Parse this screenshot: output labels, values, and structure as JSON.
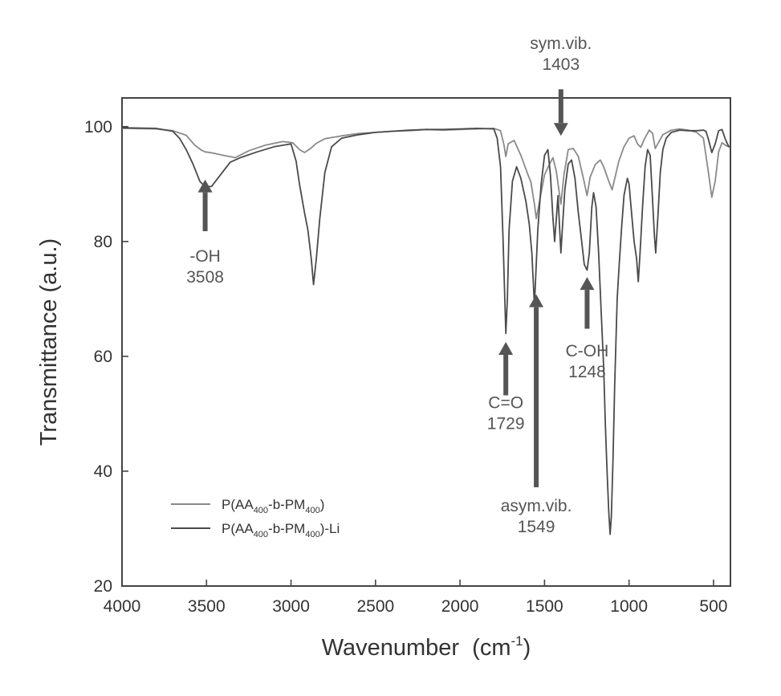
{
  "chart_data": {
    "type": "line",
    "xlabel": "Wavenumber",
    "xlabel_unit_base": "(cm",
    "xlabel_unit_exp": "-1",
    "xlabel_unit_close": ")",
    "ylabel": "Transmittance (a.u.)",
    "xlim": [
      4000,
      400
    ],
    "ylim": [
      20,
      105
    ],
    "x_ticks": [
      4000,
      3500,
      3000,
      2500,
      2000,
      1500,
      1000,
      500
    ],
    "y_ticks": [
      20,
      40,
      60,
      80,
      100
    ],
    "grid": false,
    "legend_position": "lower-left",
    "series": [
      {
        "name_main": "P(AA",
        "name_sub1": "400",
        "name_mid": "-b-PM",
        "name_sub2": "400",
        "name_end": ")",
        "color": "#8a8a8a",
        "points": [
          [
            4000,
            99.7
          ],
          [
            3800,
            99.6
          ],
          [
            3700,
            99.3
          ],
          [
            3620,
            98.5
          ],
          [
            3570,
            96.8
          ],
          [
            3530,
            95.9
          ],
          [
            3508,
            95.6
          ],
          [
            3460,
            95.4
          ],
          [
            3400,
            95.0
          ],
          [
            3330,
            94.6
          ],
          [
            3250,
            95.8
          ],
          [
            3150,
            96.8
          ],
          [
            3050,
            97.4
          ],
          [
            2990,
            97.2
          ],
          [
            2950,
            96.0
          ],
          [
            2920,
            95.5
          ],
          [
            2880,
            96.3
          ],
          [
            2850,
            97.1
          ],
          [
            2800,
            97.9
          ],
          [
            2700,
            98.4
          ],
          [
            2600,
            98.8
          ],
          [
            2500,
            99.0
          ],
          [
            2400,
            99.2
          ],
          [
            2300,
            99.3
          ],
          [
            2200,
            99.5
          ],
          [
            2100,
            99.4
          ],
          [
            2000,
            99.5
          ],
          [
            1900,
            99.6
          ],
          [
            1800,
            99.7
          ],
          [
            1760,
            99.3
          ],
          [
            1740,
            96.8
          ],
          [
            1729,
            94.8
          ],
          [
            1715,
            97.0
          ],
          [
            1680,
            97.6
          ],
          [
            1640,
            95.0
          ],
          [
            1600,
            91.8
          ],
          [
            1580,
            90.3
          ],
          [
            1560,
            86.5
          ],
          [
            1549,
            84.0
          ],
          [
            1530,
            87.0
          ],
          [
            1500,
            91.6
          ],
          [
            1470,
            93.5
          ],
          [
            1450,
            94.6
          ],
          [
            1430,
            92.2
          ],
          [
            1403,
            86.5
          ],
          [
            1385,
            91.6
          ],
          [
            1360,
            96.0
          ],
          [
            1330,
            96.2
          ],
          [
            1300,
            94.8
          ],
          [
            1270,
            91.0
          ],
          [
            1248,
            88.0
          ],
          [
            1230,
            91.2
          ],
          [
            1200,
            93.4
          ],
          [
            1170,
            94.2
          ],
          [
            1150,
            93.0
          ],
          [
            1120,
            90.5
          ],
          [
            1100,
            89.0
          ],
          [
            1080,
            91.5
          ],
          [
            1060,
            94.0
          ],
          [
            1030,
            96.5
          ],
          [
            1000,
            98.0
          ],
          [
            970,
            98.4
          ],
          [
            950,
            97.0
          ],
          [
            930,
            96.4
          ],
          [
            910,
            97.8
          ],
          [
            880,
            99.4
          ],
          [
            860,
            98.8
          ],
          [
            845,
            96.2
          ],
          [
            830,
            97.0
          ],
          [
            800,
            98.6
          ],
          [
            750,
            99.4
          ],
          [
            700,
            99.6
          ],
          [
            650,
            99.4
          ],
          [
            600,
            99.0
          ],
          [
            560,
            98.0
          ],
          [
            530,
            92.0
          ],
          [
            510,
            87.7
          ],
          [
            490,
            90.5
          ],
          [
            470,
            95.6
          ],
          [
            450,
            97.2
          ],
          [
            420,
            96.6
          ],
          [
            400,
            96.6
          ]
        ]
      },
      {
        "name_main": "P(AA",
        "name_sub1": "400",
        "name_mid": "-b-PM",
        "name_sub2": "400",
        "name_end": ")-Li",
        "color": "#4a4a4a",
        "points": [
          [
            4000,
            99.8
          ],
          [
            3800,
            99.7
          ],
          [
            3700,
            99.2
          ],
          [
            3660,
            98.0
          ],
          [
            3620,
            96.0
          ],
          [
            3580,
            93.5
          ],
          [
            3540,
            90.5
          ],
          [
            3508,
            89.5
          ],
          [
            3470,
            89.6
          ],
          [
            3420,
            91.5
          ],
          [
            3360,
            93.8
          ],
          [
            3300,
            94.6
          ],
          [
            3200,
            95.6
          ],
          [
            3100,
            96.5
          ],
          [
            3000,
            97.0
          ],
          [
            2970,
            94.0
          ],
          [
            2950,
            90.0
          ],
          [
            2920,
            85.0
          ],
          [
            2900,
            82.0
          ],
          [
            2880,
            77.0
          ],
          [
            2867,
            72.5
          ],
          [
            2850,
            77.0
          ],
          [
            2830,
            84.0
          ],
          [
            2800,
            92.0
          ],
          [
            2760,
            96.5
          ],
          [
            2700,
            98.0
          ],
          [
            2600,
            98.6
          ],
          [
            2500,
            99.0
          ],
          [
            2400,
            99.2
          ],
          [
            2300,
            99.4
          ],
          [
            2200,
            99.5
          ],
          [
            2100,
            99.5
          ],
          [
            2000,
            99.6
          ],
          [
            1900,
            99.7
          ],
          [
            1800,
            99.6
          ],
          [
            1780,
            98.0
          ],
          [
            1760,
            93.0
          ],
          [
            1745,
            80.0
          ],
          [
            1735,
            70.0
          ],
          [
            1729,
            64.0
          ],
          [
            1720,
            70.0
          ],
          [
            1710,
            82.0
          ],
          [
            1690,
            90.5
          ],
          [
            1665,
            93.0
          ],
          [
            1640,
            91.0
          ],
          [
            1610,
            87.0
          ],
          [
            1590,
            83.0
          ],
          [
            1575,
            78.0
          ],
          [
            1565,
            72.0
          ],
          [
            1560,
            69.0
          ],
          [
            1555,
            72.0
          ],
          [
            1540,
            82.0
          ],
          [
            1520,
            90.0
          ],
          [
            1500,
            95.0
          ],
          [
            1480,
            96.0
          ],
          [
            1465,
            91.5
          ],
          [
            1450,
            84.0
          ],
          [
            1440,
            80.0
          ],
          [
            1430,
            84.0
          ],
          [
            1420,
            88.0
          ],
          [
            1410,
            82.0
          ],
          [
            1403,
            78.0
          ],
          [
            1395,
            82.0
          ],
          [
            1380,
            89.0
          ],
          [
            1360,
            93.5
          ],
          [
            1340,
            94.2
          ],
          [
            1320,
            91.0
          ],
          [
            1300,
            85.0
          ],
          [
            1280,
            80.0
          ],
          [
            1265,
            76.0
          ],
          [
            1248,
            75.0
          ],
          [
            1235,
            78.0
          ],
          [
            1220,
            86.0
          ],
          [
            1210,
            88.5
          ],
          [
            1195,
            86.0
          ],
          [
            1180,
            78.0
          ],
          [
            1165,
            68.0
          ],
          [
            1150,
            58.0
          ],
          [
            1140,
            48.0
          ],
          [
            1130,
            40.0
          ],
          [
            1120,
            33.0
          ],
          [
            1112,
            29.0
          ],
          [
            1105,
            32.0
          ],
          [
            1095,
            42.0
          ],
          [
            1085,
            55.0
          ],
          [
            1070,
            70.0
          ],
          [
            1060,
            75.0
          ],
          [
            1045,
            82.0
          ],
          [
            1030,
            88.0
          ],
          [
            1010,
            91.0
          ],
          [
            1000,
            90.0
          ],
          [
            985,
            85.0
          ],
          [
            970,
            80.0
          ],
          [
            955,
            77.0
          ],
          [
            945,
            73.0
          ],
          [
            935,
            78.0
          ],
          [
            920,
            86.0
          ],
          [
            905,
            93.0
          ],
          [
            890,
            96.0
          ],
          [
            875,
            95.0
          ],
          [
            862,
            88.0
          ],
          [
            850,
            81.0
          ],
          [
            842,
            78.0
          ],
          [
            830,
            84.0
          ],
          [
            815,
            92.0
          ],
          [
            800,
            96.0
          ],
          [
            780,
            98.0
          ],
          [
            750,
            99.0
          ],
          [
            700,
            99.4
          ],
          [
            650,
            99.3
          ],
          [
            600,
            99.3
          ],
          [
            560,
            99.4
          ],
          [
            545,
            99.2
          ],
          [
            530,
            97.8
          ],
          [
            510,
            95.5
          ],
          [
            490,
            97.0
          ],
          [
            470,
            99.3
          ],
          [
            450,
            99.5
          ],
          [
            430,
            97.8
          ],
          [
            410,
            96.5
          ],
          [
            400,
            96.6
          ]
        ]
      }
    ],
    "annotations": [
      {
        "line1": "-OH",
        "line2": "3508",
        "x": 3508,
        "label_y": 76.5,
        "arrow_from_y": 81.8,
        "arrow_to_y": 90.8
      },
      {
        "line1": "C=O",
        "line2": "1729",
        "x": 1729,
        "label_y": 51.0,
        "arrow_from_y": 53.2,
        "arrow_to_y": 62.5
      },
      {
        "line1": "asym.vib.",
        "line2": "1549",
        "x": 1549,
        "label_y": 33.0,
        "arrow_from_y": 37.2,
        "arrow_to_y": 70.8
      },
      {
        "line1": "C-OH",
        "line2": "1248",
        "x": 1248,
        "label_y": 60.0,
        "arrow_from_y": 64.8,
        "arrow_to_y": 73.8
      },
      {
        "line1": "sym.vib.",
        "line2": "1403",
        "x": 1403,
        "label_y": 113.5,
        "arrow_from_y": 106.5,
        "arrow_to_y": 98.4
      }
    ]
  }
}
